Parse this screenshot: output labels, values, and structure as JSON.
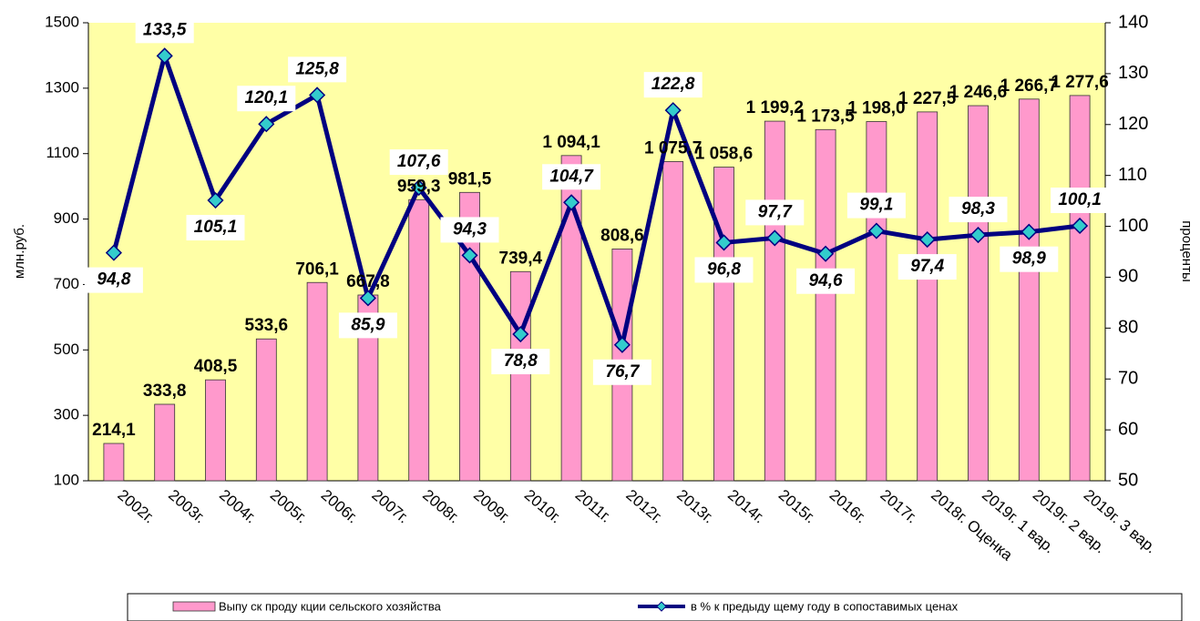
{
  "chart_data": {
    "type": "bar-line",
    "categories": [
      "2002г.",
      "2003г.",
      "2004г.",
      "2005г.",
      "2006г.",
      "2007г.",
      "2008г.",
      "2009г.",
      "2010г.",
      "2011г.",
      "2012г.",
      "2013г.",
      "2014г.",
      "2015г.",
      "2016г.",
      "2017г.",
      "2018г. Оценка",
      "2019г.  1 вар.",
      "2019г.  2 вар.",
      "2019г.  3 вар."
    ],
    "y_label": "млн.руб.",
    "y2_label": "проценты",
    "ylim": [
      100,
      1500
    ],
    "yticks": [
      100,
      300,
      500,
      700,
      900,
      1100,
      1300,
      1500
    ],
    "y2lim": [
      50,
      140
    ],
    "y2ticks": [
      50,
      60,
      70,
      80,
      90,
      100,
      110,
      120,
      130,
      140
    ],
    "plot_background": "#ffffa6",
    "series": [
      {
        "name": "Выпу ск проду кции сельского хозяйства",
        "type": "bar",
        "color": "#ff99cc",
        "values": [
          214.1,
          333.8,
          408.5,
          533.6,
          706.1,
          667.8,
          959.3,
          981.5,
          739.4,
          1094.1,
          808.6,
          1075.7,
          1058.6,
          1199.2,
          1173.5,
          1198.0,
          1227.5,
          1246.6,
          1266.7,
          1277.6
        ],
        "value_labels": [
          "214,1",
          "333,8",
          "408,5",
          "533,6",
          "706,1",
          "667,8",
          "959,3",
          "981,5",
          "739,4",
          "1 094,1",
          "808,6",
          "1 075,7",
          "1 058,6",
          "1 199,2",
          "1 173,5",
          "1 198,0",
          "1 227,5",
          "1 246,6",
          "1 266,7",
          "1 277,6"
        ]
      },
      {
        "name": "в % к предыду щему году в сопоставимых ценах",
        "type": "line",
        "axis": "y2",
        "color": "#000080",
        "marker_color": "#33cccc",
        "values": [
          94.8,
          133.5,
          105.1,
          120.1,
          125.8,
          85.9,
          107.6,
          94.3,
          78.8,
          104.7,
          76.7,
          122.8,
          96.8,
          97.7,
          94.6,
          99.1,
          97.4,
          98.3,
          98.9,
          100.1
        ],
        "value_labels": [
          "94,8",
          "133,5",
          "105,1",
          "120,1",
          "125,8",
          "85,9",
          "107,6",
          "94,3",
          "78,8",
          "104,7",
          "76,7",
          "122,8",
          "96,8",
          "97,7",
          "94,6",
          "99,1",
          "97,4",
          "98,3",
          "98,9",
          "100,1"
        ]
      }
    ]
  }
}
